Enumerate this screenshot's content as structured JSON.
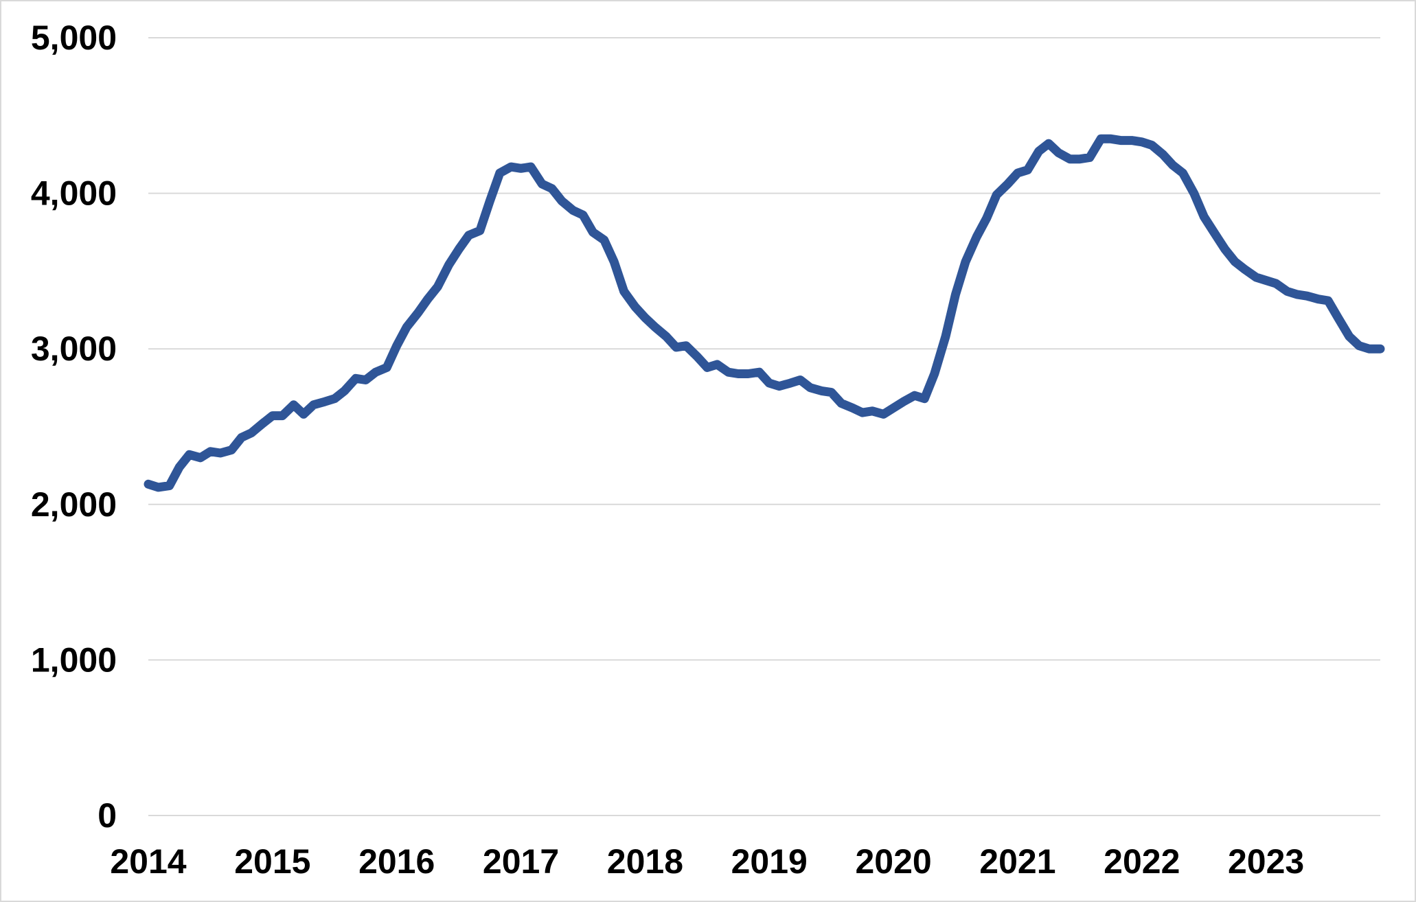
{
  "chart_data": {
    "type": "line",
    "title": "",
    "xlabel": "",
    "ylabel": "",
    "x_ticks": [
      "2014",
      "2015",
      "2016",
      "2017",
      "2018",
      "2019",
      "2020",
      "2021",
      "2022",
      "2023"
    ],
    "y_ticks": [
      "0",
      "1,000",
      "2,000",
      "3,000",
      "4,000",
      "5,000"
    ],
    "xlim": [
      2014.0,
      2023.92
    ],
    "ylim": [
      0,
      5000
    ],
    "grid": "horizontal",
    "legend": "none",
    "colors": {
      "line": "#2f5597",
      "grid": "#d9d9d9",
      "frame": "#d9d9d9"
    },
    "series": [
      {
        "x": [
          2014.0,
          2014.08,
          2014.17,
          2014.25,
          2014.33,
          2014.42,
          2014.5,
          2014.58,
          2014.67,
          2014.75,
          2014.83,
          2014.92,
          2015.0,
          2015.08,
          2015.17,
          2015.25,
          2015.33,
          2015.42,
          2015.5,
          2015.58,
          2015.67,
          2015.75,
          2015.83,
          2015.92,
          2016.0,
          2016.08,
          2016.17,
          2016.25,
          2016.33,
          2016.42,
          2016.5,
          2016.58,
          2016.67,
          2016.75,
          2016.83,
          2016.92,
          2017.0,
          2017.08,
          2017.17,
          2017.25,
          2017.33,
          2017.42,
          2017.5,
          2017.58,
          2017.67,
          2017.75,
          2017.83,
          2017.92,
          2018.0,
          2018.08,
          2018.17,
          2018.25,
          2018.33,
          2018.42,
          2018.5,
          2018.58,
          2018.67,
          2018.75,
          2018.83,
          2018.92,
          2019.0,
          2019.08,
          2019.17,
          2019.25,
          2019.33,
          2019.42,
          2019.5,
          2019.58,
          2019.67,
          2019.75,
          2019.83,
          2019.92,
          2020.0,
          2020.08,
          2020.17,
          2020.25,
          2020.33,
          2020.42,
          2020.5,
          2020.58,
          2020.67,
          2020.75,
          2020.83,
          2020.92,
          2021.0,
          2021.08,
          2021.17,
          2021.25,
          2021.33,
          2021.42,
          2021.5,
          2021.58,
          2021.67,
          2021.75,
          2021.83,
          2021.92,
          2022.0,
          2022.08,
          2022.17,
          2022.25,
          2022.33,
          2022.42,
          2022.5,
          2022.58,
          2022.67,
          2022.75,
          2022.83,
          2022.92,
          2023.0,
          2023.08,
          2023.17,
          2023.25,
          2023.33,
          2023.42,
          2023.5,
          2023.58,
          2023.67,
          2023.75,
          2023.83,
          2023.92
        ],
        "values": [
          2130,
          2110,
          2120,
          2240,
          2320,
          2300,
          2340,
          2330,
          2350,
          2430,
          2460,
          2520,
          2570,
          2570,
          2640,
          2580,
          2640,
          2660,
          2680,
          2730,
          2810,
          2800,
          2850,
          2880,
          3020,
          3140,
          3230,
          3320,
          3400,
          3540,
          3640,
          3730,
          3760,
          3950,
          4130,
          4170,
          4160,
          4170,
          4060,
          4030,
          3950,
          3890,
          3860,
          3750,
          3700,
          3560,
          3370,
          3270,
          3200,
          3140,
          3080,
          3010,
          3020,
          2950,
          2880,
          2900,
          2850,
          2840,
          2840,
          2850,
          2780,
          2760,
          2780,
          2800,
          2750,
          2730,
          2720,
          2650,
          2620,
          2590,
          2600,
          2580,
          2620,
          2660,
          2700,
          2680,
          2840,
          3080,
          3350,
          3560,
          3720,
          3840,
          3990,
          4060,
          4130,
          4150,
          4270,
          4320,
          4260,
          4220,
          4220,
          4230,
          4350,
          4350,
          4340,
          4340,
          4330,
          4310,
          4250,
          4180,
          4130,
          4000,
          3850,
          3750,
          3640,
          3560,
          3510,
          3460,
          3440,
          3420,
          3370,
          3350,
          3340,
          3320,
          3310,
          3200,
          3080,
          3020,
          3000,
          3000
        ]
      }
    ]
  }
}
